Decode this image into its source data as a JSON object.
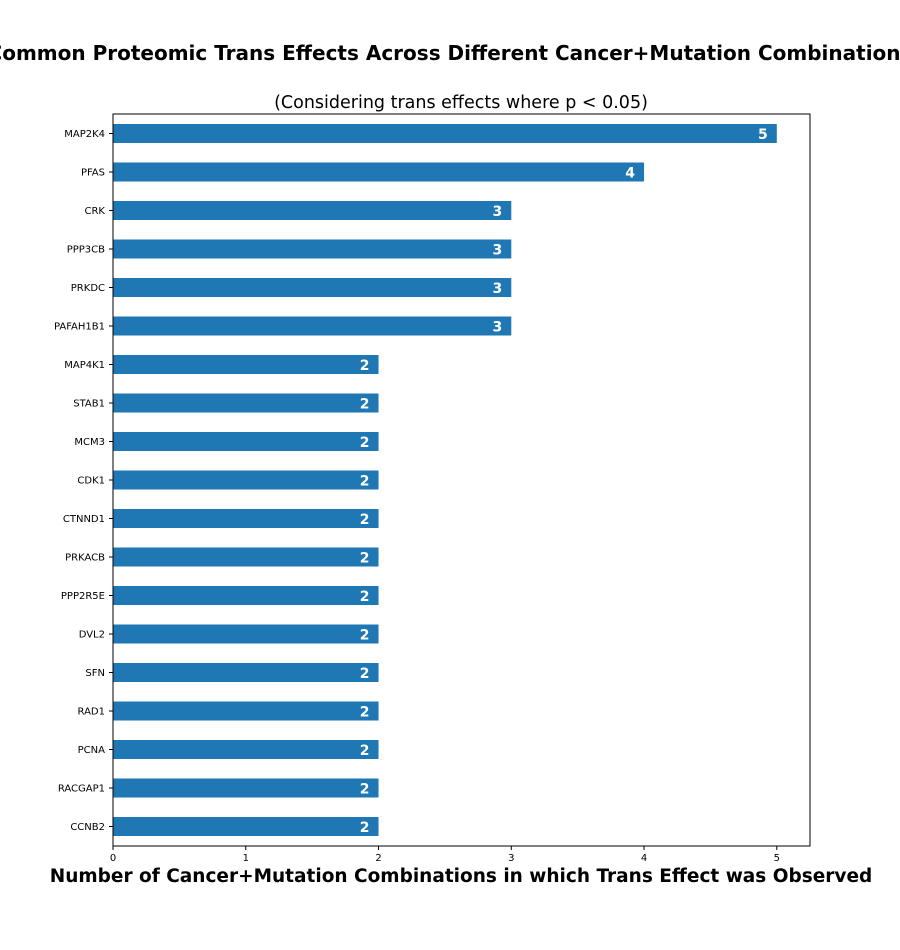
{
  "chart_data": {
    "type": "bar",
    "orientation": "horizontal",
    "title": "Common Proteomic Trans Effects Across Different Cancer+Mutation Combinations",
    "subtitle": "(Considering trans effects where p < 0.05)",
    "xlabel": "Number of Cancer+Mutation Combinations in which Trans Effect was Observed",
    "ylabel": "",
    "xlim": [
      0,
      5.25
    ],
    "xticks": [
      0,
      1,
      2,
      3,
      4,
      5
    ],
    "grid": false,
    "bar_color": "#1f77b4",
    "categories": [
      "MAP2K4",
      "PFAS",
      "CRK",
      "PPP3CB",
      "PRKDC",
      "PAFAH1B1",
      "MAP4K1",
      "STAB1",
      "MCM3",
      "CDK1",
      "CTNND1",
      "PRKACB",
      "PPP2R5E",
      "DVL2",
      "SFN",
      "RAD1",
      "PCNA",
      "RACGAP1",
      "CCNB2"
    ],
    "values": [
      5,
      4,
      3,
      3,
      3,
      3,
      2,
      2,
      2,
      2,
      2,
      2,
      2,
      2,
      2,
      2,
      2,
      2,
      2
    ]
  }
}
